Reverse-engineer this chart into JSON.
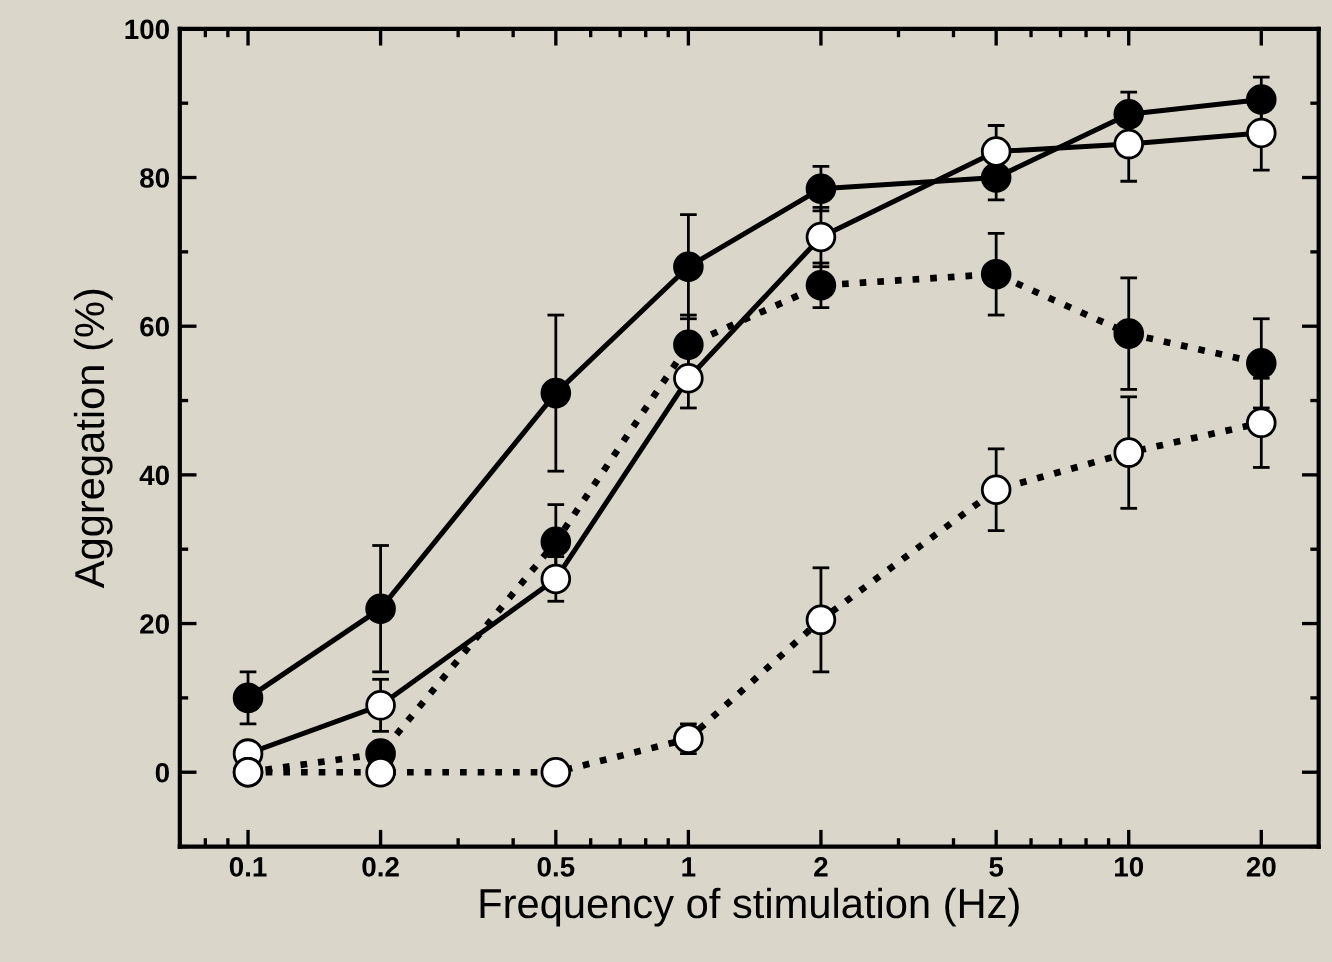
{
  "chart_data": {
    "type": "line",
    "xlabel": "Frequency of stimulation (Hz)",
    "ylabel": "Aggregation (%)",
    "log": "x",
    "x": [
      0.1,
      0.2,
      0.5,
      1,
      2,
      5,
      10,
      20
    ],
    "xlim": [
      0.07,
      27
    ],
    "xticks": [
      0.1,
      0.2,
      0.5,
      1,
      2,
      5,
      10,
      20
    ],
    "ylim": [
      -10,
      100
    ],
    "yticks": [
      0,
      20,
      40,
      60,
      80,
      100
    ],
    "marker": "circle",
    "grid": false,
    "legend": false,
    "series": [
      {
        "color": "#000000",
        "line_style": "solid",
        "values": [
          10,
          22,
          51,
          68,
          78.5,
          80,
          88.5,
          90.5
        ],
        "errors": [
          3.5,
          8.5,
          10.5,
          7,
          3,
          3,
          3,
          3
        ]
      },
      {
        "color": "#ffffff",
        "line_style": "solid",
        "values": [
          2.5,
          9,
          26,
          53,
          72,
          83.5,
          84.5,
          86
        ],
        "errors": [
          null,
          3.5,
          3,
          4,
          4,
          3.5,
          5,
          5
        ]
      },
      {
        "color": "#000000",
        "line_style": "dotted",
        "values": [
          0,
          2.5,
          31,
          57.5,
          65.5,
          67,
          59,
          55
        ],
        "errors": [
          null,
          null,
          5,
          4,
          3,
          5.5,
          7.5,
          6
        ]
      },
      {
        "color": "#ffffff",
        "line_style": "dotted",
        "values": [
          0,
          0,
          0,
          4.5,
          20.5,
          38,
          43,
          47
        ],
        "errors": [
          null,
          null,
          null,
          2,
          7,
          5.5,
          7.5,
          6
        ]
      }
    ]
  }
}
